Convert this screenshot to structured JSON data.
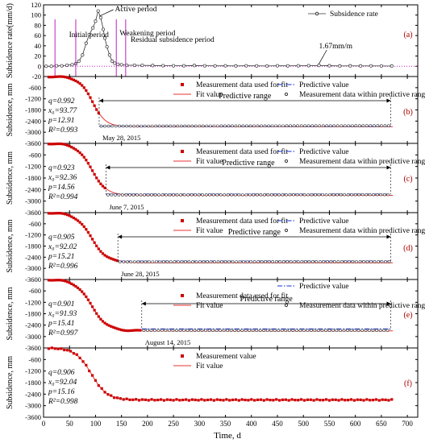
{
  "figure": {
    "xlabel": "Time, d",
    "x_ticks": [
      0,
      50,
      100,
      150,
      200,
      250,
      300,
      350,
      400,
      450,
      500,
      550,
      600,
      650,
      700
    ],
    "colors": {
      "measure": "#cc0000",
      "fit": "#e83030",
      "predict": "#1030d0",
      "axis": "#000000",
      "guide": "#c020c0"
    }
  },
  "chart_data": [
    {
      "panel_label": "(a)",
      "type": "line",
      "ylabel": "Subsidence rate(mm/d)",
      "xlim": [
        0,
        720
      ],
      "ylim": [
        -20,
        120
      ],
      "y_ticks": [
        -20,
        0,
        20,
        40,
        60,
        80,
        100,
        120
      ],
      "legend": [
        "Subsidence rate"
      ],
      "annotations": [
        "Initial period",
        "Active period",
        "Weakening period",
        "Residual subsidence period",
        "1.67mm/m"
      ],
      "series": [
        {
          "name": "Subsidence rate",
          "x": [
            5,
            15,
            25,
            35,
            45,
            55,
            62,
            68,
            75,
            82,
            88,
            95,
            100,
            105,
            110,
            115,
            118,
            122,
            127,
            132,
            137,
            143,
            150,
            160,
            175,
            190,
            210,
            230,
            250,
            270,
            290,
            310,
            330,
            350,
            370,
            390,
            410,
            430,
            450,
            470,
            490,
            510,
            530,
            550,
            570,
            590,
            610,
            630,
            650,
            670
          ],
          "y": [
            0,
            0,
            1,
            1,
            2,
            3,
            5,
            10,
            22,
            45,
            62,
            75,
            88,
            108,
            95,
            72,
            55,
            38,
            22,
            10,
            6,
            4,
            3,
            2,
            2,
            1.8,
            1.5,
            1.2,
            1,
            1,
            1.5,
            1,
            0.8,
            1,
            0.7,
            1,
            0.8,
            0.6,
            1,
            0.8,
            1,
            1.2,
            1.67,
            1.1,
            0.7,
            0.9,
            0.7,
            0.8,
            0.6,
            0.5
          ]
        }
      ]
    },
    {
      "panel_label": "(b)",
      "type": "scatter",
      "ylabel": "Subsidence, mm",
      "xlim": [
        0,
        720
      ],
      "ylim": [
        -3600,
        0
      ],
      "y_ticks": [
        -600,
        -1200,
        -1800,
        -2400,
        -3000,
        -3600
      ],
      "params": [
        "q=0.992",
        "x₀=93.77",
        "p=12.91",
        "R²=0.993"
      ],
      "legend": [
        "Measurement data used for fit",
        "Fit value",
        "Predictive value",
        "Measurement data within predictive range"
      ],
      "predictive_range": "Predictive range",
      "predictive_range_x": [
        107,
        668
      ],
      "cutoff_x": 107,
      "cutoff_label": "May 28, 2015",
      "model": {
        "q": 0.992,
        "x0": 93.77,
        "p": 12.91,
        "total": 2700
      },
      "predict_value": -2680
    },
    {
      "panel_label": "(c)",
      "type": "scatter",
      "ylabel": "Subsidence, mm",
      "xlim": [
        0,
        720
      ],
      "ylim": [
        -3600,
        0
      ],
      "y_ticks": [
        -600,
        -1200,
        -1800,
        -2400,
        -3000,
        -3600
      ],
      "params": [
        "q=0.923",
        "x₀=92.36",
        "p=14.56",
        "R²=0.994"
      ],
      "legend": [
        "Measurement data used for fit",
        "Fit value",
        "Predictive value",
        "Measurement data within predictive range"
      ],
      "predictive_range": "Predictive range",
      "predictive_range_x": [
        120,
        668
      ],
      "cutoff_x": 120,
      "cutoff_label": "June 7, 2015",
      "model": {
        "q": 0.923,
        "x0": 92.36,
        "p": 14.56,
        "total": 2700
      },
      "predict_value": -2640
    },
    {
      "panel_label": "(d)",
      "type": "scatter",
      "ylabel": "Subsidence, mm",
      "xlim": [
        0,
        720
      ],
      "ylim": [
        -3600,
        0
      ],
      "y_ticks": [
        -600,
        -1200,
        -1800,
        -2400,
        -3000,
        -3600
      ],
      "params": [
        "q=0.905",
        "x₀=92.02",
        "p=15.21",
        "R²=0.996"
      ],
      "legend": [
        "Measurement data used for fit",
        "Fit value",
        "Predictive value",
        "Measurement data within predictive range"
      ],
      "predictive_range": "Predictive range",
      "predictive_range_x": [
        143,
        668
      ],
      "cutoff_x": 143,
      "cutoff_label": "June 28, 2015",
      "model": {
        "q": 0.905,
        "x0": 92.02,
        "p": 15.21,
        "total": 2700
      },
      "predict_value": -2610
    },
    {
      "panel_label": "(e)",
      "type": "scatter",
      "ylabel": "Subsidence, mm",
      "xlim": [
        0,
        720
      ],
      "ylim": [
        -3600,
        0
      ],
      "y_ticks": [
        -600,
        -1200,
        -1800,
        -2400,
        -3000,
        -3600
      ],
      "params": [
        "q=0.901",
        "x₀=91.93",
        "p=15.41",
        "R²=0.997"
      ],
      "legend": [
        "Predictive value",
        "Measurement data used for fit",
        "Fit value",
        "Measurement data within predictive range"
      ],
      "predictive_range": "Predictive range",
      "predictive_range_x": [
        189,
        668
      ],
      "cutoff_x": 189,
      "cutoff_label": "August 14, 2015",
      "model": {
        "q": 0.901,
        "x0": 91.93,
        "p": 15.41,
        "total": 2700
      },
      "predict_value": -2600
    },
    {
      "panel_label": "(f)",
      "type": "scatter",
      "ylabel": "Subsidence, mm",
      "xlim": [
        0,
        720
      ],
      "ylim": [
        -3600,
        0
      ],
      "y_ticks": [
        -600,
        -1200,
        -1800,
        -2400,
        -3000,
        -3600
      ],
      "params": [
        "q=0.906",
        "x₀=92.04",
        "p=15.16",
        "R²=0.998"
      ],
      "legend": [
        "Measurement value",
        "Fit value"
      ],
      "model": {
        "q": 0.906,
        "x0": 92.04,
        "p": 15.16,
        "total": 2700
      }
    }
  ]
}
